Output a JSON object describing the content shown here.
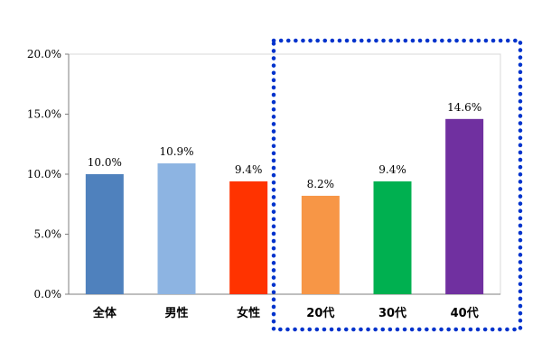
{
  "chart_data": {
    "type": "bar",
    "categories": [
      "全体",
      "男性",
      "女性",
      "20代",
      "30代",
      "40代"
    ],
    "values": [
      10.0,
      10.9,
      9.4,
      8.2,
      9.4,
      14.6
    ],
    "data_labels": [
      "10.0%",
      "10.9%",
      "9.4%",
      "8.2%",
      "9.4%",
      "14.6%"
    ],
    "colors": [
      "#4f81bd",
      "#8db4e2",
      "#ff3300",
      "#f79646",
      "#00b050",
      "#7030a0"
    ],
    "title": "",
    "xlabel": "",
    "ylabel": "",
    "ylim": [
      0,
      20
    ],
    "yticks": [
      0,
      5,
      10,
      15,
      20
    ],
    "ytick_labels": [
      "0.0%",
      "5.0%",
      "10.0%",
      "15.0%",
      "20.0%"
    ],
    "grid": false,
    "legend": "none",
    "highlight": {
      "categories": [
        "20代",
        "30代",
        "40代"
      ],
      "style": "dotted",
      "color": "#0033cc"
    }
  }
}
